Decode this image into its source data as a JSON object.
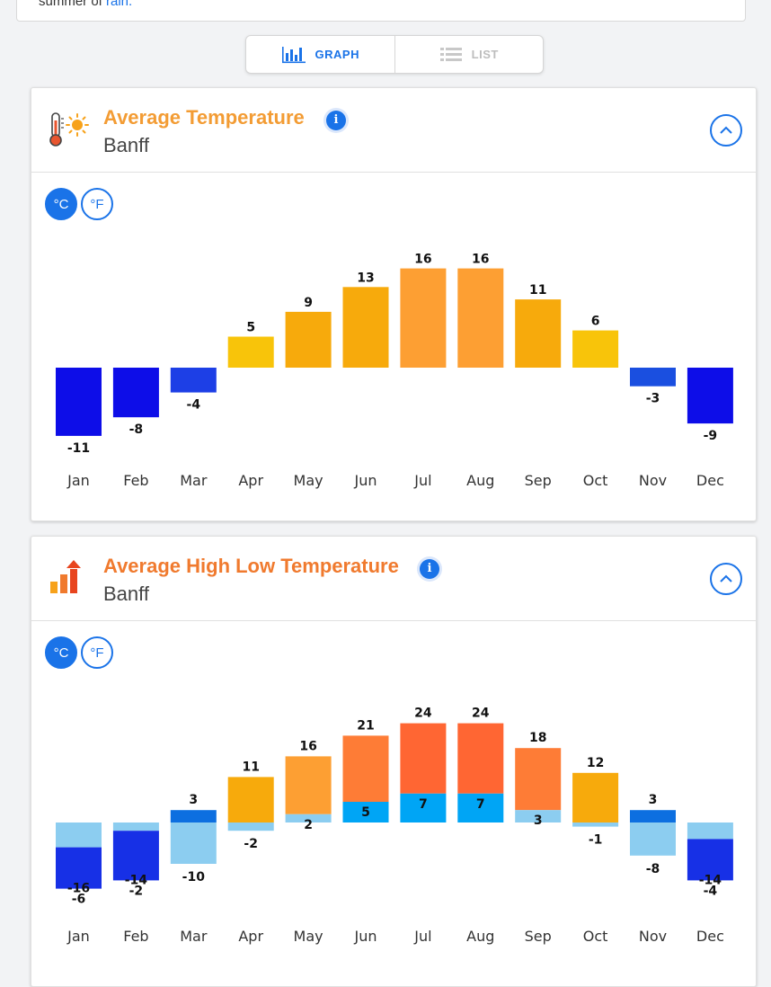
{
  "top_snippet": {
    "text": "summer of ",
    "link": "rain."
  },
  "view_toggle": {
    "graph_label": "GRAPH",
    "list_label": "LIST"
  },
  "cards": {
    "avg": {
      "title": "Average Temperature",
      "location": "Banff",
      "info_glyph": "i",
      "unit_c": "°C",
      "unit_f": "°F",
      "title_color": "#f39c34"
    },
    "hilo": {
      "title": "Average High Low Temperature",
      "location": "Banff",
      "info_glyph": "i",
      "unit_c": "°C",
      "unit_f": "°F",
      "title_color": "#f07a2e"
    }
  },
  "chart_data": [
    {
      "type": "bar",
      "categories": [
        "Jan",
        "Feb",
        "Mar",
        "Apr",
        "May",
        "Jun",
        "Jul",
        "Aug",
        "Sep",
        "Oct",
        "Nov",
        "Dec"
      ],
      "values": [
        -11,
        -8,
        -4,
        5,
        9,
        13,
        16,
        16,
        11,
        6,
        -3,
        -9
      ],
      "unit": "°C"
    },
    {
      "type": "bar",
      "categories": [
        "Jan",
        "Feb",
        "Mar",
        "Apr",
        "May",
        "Jun",
        "Jul",
        "Aug",
        "Sep",
        "Oct",
        "Nov",
        "Dec"
      ],
      "series": [
        {
          "values": [
            -6,
            -2,
            3,
            11,
            16,
            21,
            24,
            24,
            18,
            12,
            3,
            -4
          ]
        },
        {
          "values": [
            -16,
            -14,
            -10,
            -2,
            2,
            5,
            7,
            7,
            3,
            -1,
            -8,
            -14
          ]
        }
      ],
      "unit": "°C"
    }
  ]
}
